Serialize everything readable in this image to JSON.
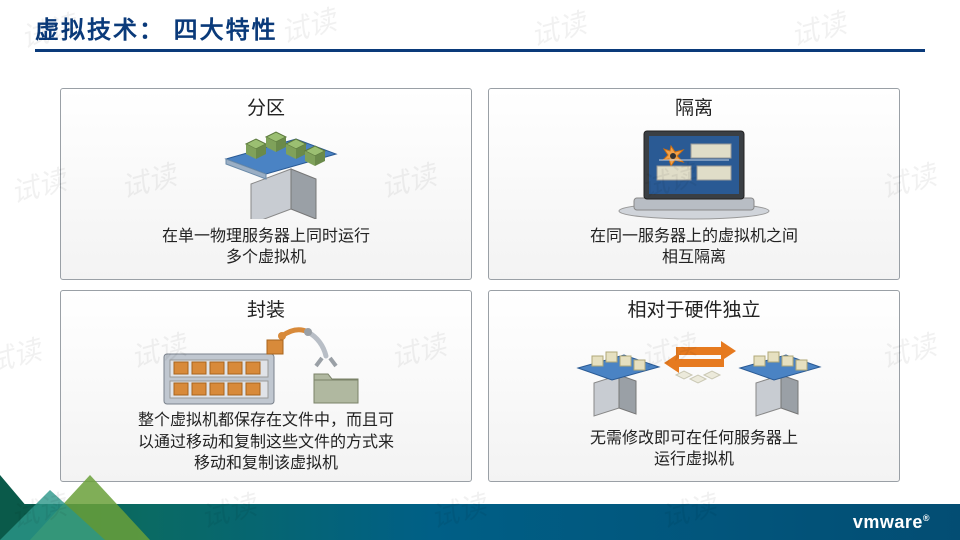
{
  "slide": {
    "title": "虚拟技术：  四大特性",
    "title_color": "#0a3a7a",
    "underline_color": "#0a3a7a",
    "background_color": "#ffffff"
  },
  "watermark": {
    "text": "试读",
    "opacity": 0.05
  },
  "cards": {
    "partition": {
      "title": "分区",
      "desc": "在单一物理服务器上同时运行\n多个虚拟机",
      "graphic_type": "server-cubes"
    },
    "isolation": {
      "title": "隔离",
      "desc": "在同一服务器上的虚拟机之间\n相互隔离",
      "graphic_type": "laptop-isolation"
    },
    "encapsulation": {
      "title": "封装",
      "desc": "整个虚拟机都保存在文件中，而且可\n以通过移动和复制这些文件的方式来\n移动和复制该虚拟机",
      "graphic_type": "rack-to-folder"
    },
    "hw_independent": {
      "title": "相对于硬件独立",
      "desc": "无需修改即可在任何服务器上\n运行虚拟机",
      "graphic_type": "server-migration"
    }
  },
  "styling": {
    "card_border": "#9aa0a6",
    "card_bg_top": "#ffffff",
    "card_bg_bottom": "#f3f3f3",
    "card_title_fontsize": 19,
    "card_desc_fontsize": 16,
    "title_fontsize": 24,
    "cube_fill": "#9bbf72",
    "plate_fill": "#4a83c4",
    "arrow_fill": "#e67a1f",
    "migrate_cube_fill": "#e6e0c0",
    "laptop_screen_bg": "#2a5a94",
    "rack_body": "#c0c7d0",
    "folder_fill": "#b0b8a0"
  },
  "footer": {
    "logo_text": "vmware",
    "bar_gradient": [
      "#0a5a4a",
      "#0a6a63",
      "#005f86",
      "#034d73"
    ]
  }
}
